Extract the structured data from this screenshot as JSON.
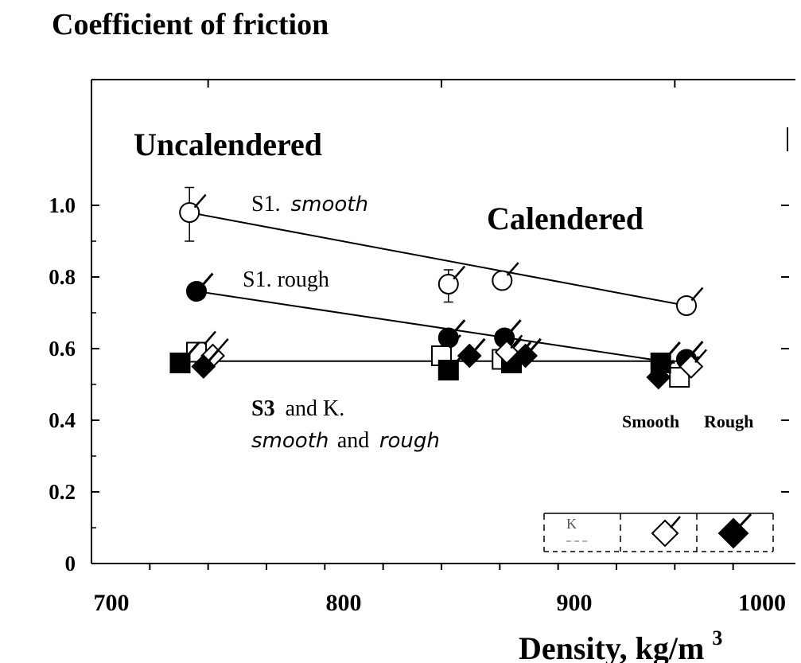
{
  "chart_data": {
    "type": "scatter",
    "title": "Coefficient of friction",
    "xlabel": "Density, kg/m",
    "xlabel_sup": "3",
    "ylabel": "",
    "xlim": [
      700,
      1000
    ],
    "ylim": [
      0,
      1.0
    ],
    "x_ticks": [
      700,
      800,
      900,
      1000
    ],
    "x_tick_labels": [
      "700",
      "800",
      "900",
      "1000"
    ],
    "y_ticks": [
      0,
      0.2,
      0.4,
      0.6,
      0.8,
      1.0
    ],
    "y_tick_labels": [
      "0",
      "0.2",
      "0.4",
      "0.6",
      "0.8",
      "1.0"
    ],
    "grid": false,
    "annotations": {
      "uncalendered": "Uncalendered",
      "calendered": "Calendered",
      "s1_smooth_prefix": "S1.",
      "s1_smooth_suffix": "smooth",
      "s1_rough": "S1. rough",
      "s3_bold": "S3",
      "s3_rest": "and K.",
      "s3_line2_a": "smooth",
      "s3_line2_b": "and",
      "s3_line2_c": "rough",
      "legend_smooth": "Smooth",
      "legend_rough": "Rough",
      "legend_k": "K"
    },
    "series": [
      {
        "name": "S1. smooth",
        "marker": "open-circle",
        "points": [
          [
            742,
            0.98
          ],
          [
            853,
            0.78
          ],
          [
            876,
            0.79
          ],
          [
            955,
            0.72
          ]
        ],
        "fit_line": [
          [
            742,
            0.98
          ],
          [
            955,
            0.72
          ]
        ],
        "error_bars": [
          [
            742,
            0.9,
            1.05
          ],
          [
            853,
            0.73,
            0.82
          ]
        ]
      },
      {
        "name": "S1. rough",
        "marker": "filled-circle",
        "points": [
          [
            745,
            0.76
          ],
          [
            853,
            0.63
          ],
          [
            877,
            0.63
          ],
          [
            955,
            0.57
          ]
        ],
        "fit_line": [
          [
            745,
            0.76
          ],
          [
            950,
            0.56
          ]
        ]
      },
      {
        "marker": "open-square",
        "points": [
          [
            745,
            0.59
          ],
          [
            850,
            0.58
          ],
          [
            876,
            0.57
          ],
          [
            952,
            0.52
          ]
        ]
      },
      {
        "marker": "filled-square",
        "points": [
          [
            738,
            0.56
          ],
          [
            853,
            0.54
          ],
          [
            880,
            0.56
          ],
          [
            944,
            0.56
          ]
        ]
      },
      {
        "marker": "open-diamond",
        "points": [
          [
            752,
            0.58
          ],
          [
            878,
            0.59
          ],
          [
            957,
            0.55
          ]
        ]
      },
      {
        "marker": "filled-diamond",
        "points": [
          [
            748,
            0.55
          ],
          [
            862,
            0.58
          ],
          [
            886,
            0.58
          ],
          [
            943,
            0.52
          ]
        ]
      },
      {
        "name": "S3 and K. smooth and rough",
        "marker": "none",
        "points": [],
        "fit_line": [
          [
            738,
            0.565
          ],
          [
            955,
            0.565
          ]
        ]
      }
    ]
  }
}
